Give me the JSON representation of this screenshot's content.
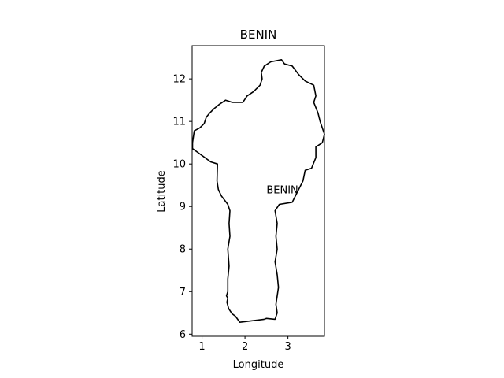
{
  "chart_data": {
    "type": "map",
    "title": "BENIN",
    "xlabel": "Longitude",
    "ylabel": "Latitude",
    "xlim": [
      0.77,
      3.85
    ],
    "ylim": [
      5.95,
      12.78
    ],
    "xticks": [
      1,
      2,
      3
    ],
    "yticks": [
      6,
      7,
      8,
      9,
      10,
      11,
      12
    ],
    "grid": false,
    "legend": "none",
    "annotations": [
      {
        "text": "BENIN",
        "lon": 2.5,
        "lat": 9.4
      }
    ],
    "outline_color": "#000000",
    "outline": [
      [
        2.45,
        6.35
      ],
      [
        1.88,
        6.28
      ],
      [
        1.78,
        6.42
      ],
      [
        1.7,
        6.48
      ],
      [
        1.62,
        6.6
      ],
      [
        1.58,
        6.75
      ],
      [
        1.6,
        6.85
      ],
      [
        1.57,
        6.9
      ],
      [
        1.6,
        7.0
      ],
      [
        1.6,
        7.3
      ],
      [
        1.63,
        7.6
      ],
      [
        1.6,
        8.0
      ],
      [
        1.65,
        8.3
      ],
      [
        1.63,
        8.6
      ],
      [
        1.65,
        8.9
      ],
      [
        1.6,
        9.05
      ],
      [
        1.45,
        9.25
      ],
      [
        1.38,
        9.4
      ],
      [
        1.35,
        9.6
      ],
      [
        1.36,
        10.0
      ],
      [
        1.2,
        10.05
      ],
      [
        1.0,
        10.2
      ],
      [
        0.78,
        10.36
      ],
      [
        0.78,
        10.5
      ],
      [
        0.82,
        10.78
      ],
      [
        0.95,
        10.85
      ],
      [
        1.05,
        10.95
      ],
      [
        1.1,
        11.1
      ],
      [
        1.18,
        11.2
      ],
      [
        1.28,
        11.3
      ],
      [
        1.4,
        11.4
      ],
      [
        1.55,
        11.5
      ],
      [
        1.7,
        11.45
      ],
      [
        1.8,
        11.45
      ],
      [
        1.95,
        11.45
      ],
      [
        2.05,
        11.6
      ],
      [
        2.2,
        11.7
      ],
      [
        2.35,
        11.85
      ],
      [
        2.4,
        12.0
      ],
      [
        2.38,
        12.15
      ],
      [
        2.45,
        12.3
      ],
      [
        2.6,
        12.4
      ],
      [
        2.85,
        12.45
      ],
      [
        2.92,
        12.35
      ],
      [
        3.1,
        12.3
      ],
      [
        3.25,
        12.1
      ],
      [
        3.4,
        11.95
      ],
      [
        3.6,
        11.85
      ],
      [
        3.65,
        11.6
      ],
      [
        3.6,
        11.45
      ],
      [
        3.7,
        11.2
      ],
      [
        3.75,
        11.0
      ],
      [
        3.85,
        10.7
      ],
      [
        3.8,
        10.5
      ],
      [
        3.65,
        10.4
      ],
      [
        3.65,
        10.15
      ],
      [
        3.55,
        9.9
      ],
      [
        3.4,
        9.85
      ],
      [
        3.35,
        9.6
      ],
      [
        3.2,
        9.3
      ],
      [
        3.1,
        9.1
      ],
      [
        2.8,
        9.05
      ],
      [
        2.7,
        8.9
      ],
      [
        2.75,
        8.6
      ],
      [
        2.72,
        8.3
      ],
      [
        2.75,
        8.0
      ],
      [
        2.7,
        7.7
      ],
      [
        2.75,
        7.4
      ],
      [
        2.78,
        7.1
      ],
      [
        2.75,
        6.9
      ],
      [
        2.72,
        6.7
      ],
      [
        2.75,
        6.5
      ],
      [
        2.7,
        6.35
      ],
      [
        2.5,
        6.37
      ],
      [
        2.45,
        6.35
      ]
    ],
    "border_segment": [
      [
        0.78,
        10.36
      ],
      [
        1.0,
        10.2
      ],
      [
        1.2,
        10.05
      ],
      [
        1.36,
        10.0
      ]
    ]
  }
}
